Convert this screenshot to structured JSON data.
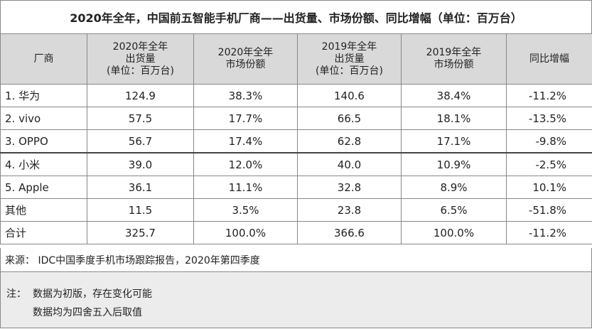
{
  "title": "2020年全年，中国前五智能手机厂商——出货量、市场份额、同比增幅（单位：百万台）",
  "table": {
    "header": [
      [
        "厂商"
      ],
      [
        "2020年全年",
        "出货量",
        "(单位：百万台)"
      ],
      [
        "2020年全年",
        "市场份额"
      ],
      [
        "2019年全年",
        "出货量",
        "(单位：百万台)"
      ],
      [
        "2019年全年",
        "市场份额"
      ],
      [
        "同比增幅"
      ]
    ],
    "rows": [
      [
        "1. 华为",
        "124.9",
        "38.3%",
        "140.6",
        "38.4%",
        "-11.2%"
      ],
      [
        "2. vivo",
        "57.5",
        "17.7%",
        "66.5",
        "18.1%",
        "-13.5%"
      ],
      [
        "3. OPPO",
        "56.7",
        "17.4%",
        "62.8",
        "17.1%",
        "-9.8%"
      ],
      [
        "4. 小米",
        "39.0",
        "12.0%",
        "40.0",
        "10.9%",
        "-2.5%"
      ],
      [
        "5. Apple",
        "36.1",
        "11.1%",
        "32.8",
        "8.9%",
        "10.1%"
      ],
      [
        "其他",
        "11.5",
        "3.5%",
        "23.8",
        "6.5%",
        "-51.8%"
      ],
      [
        "合计",
        "325.7",
        "100.0%",
        "366.6",
        "100.0%",
        "-11.2%"
      ]
    ]
  },
  "source": "来源： IDC中国季度手机市场跟踪报告，2020年第四季度",
  "notes": {
    "label": "注：",
    "lines": [
      "数据为初版，存在变化可能",
      "数据均为四舍五入后取值"
    ]
  }
}
